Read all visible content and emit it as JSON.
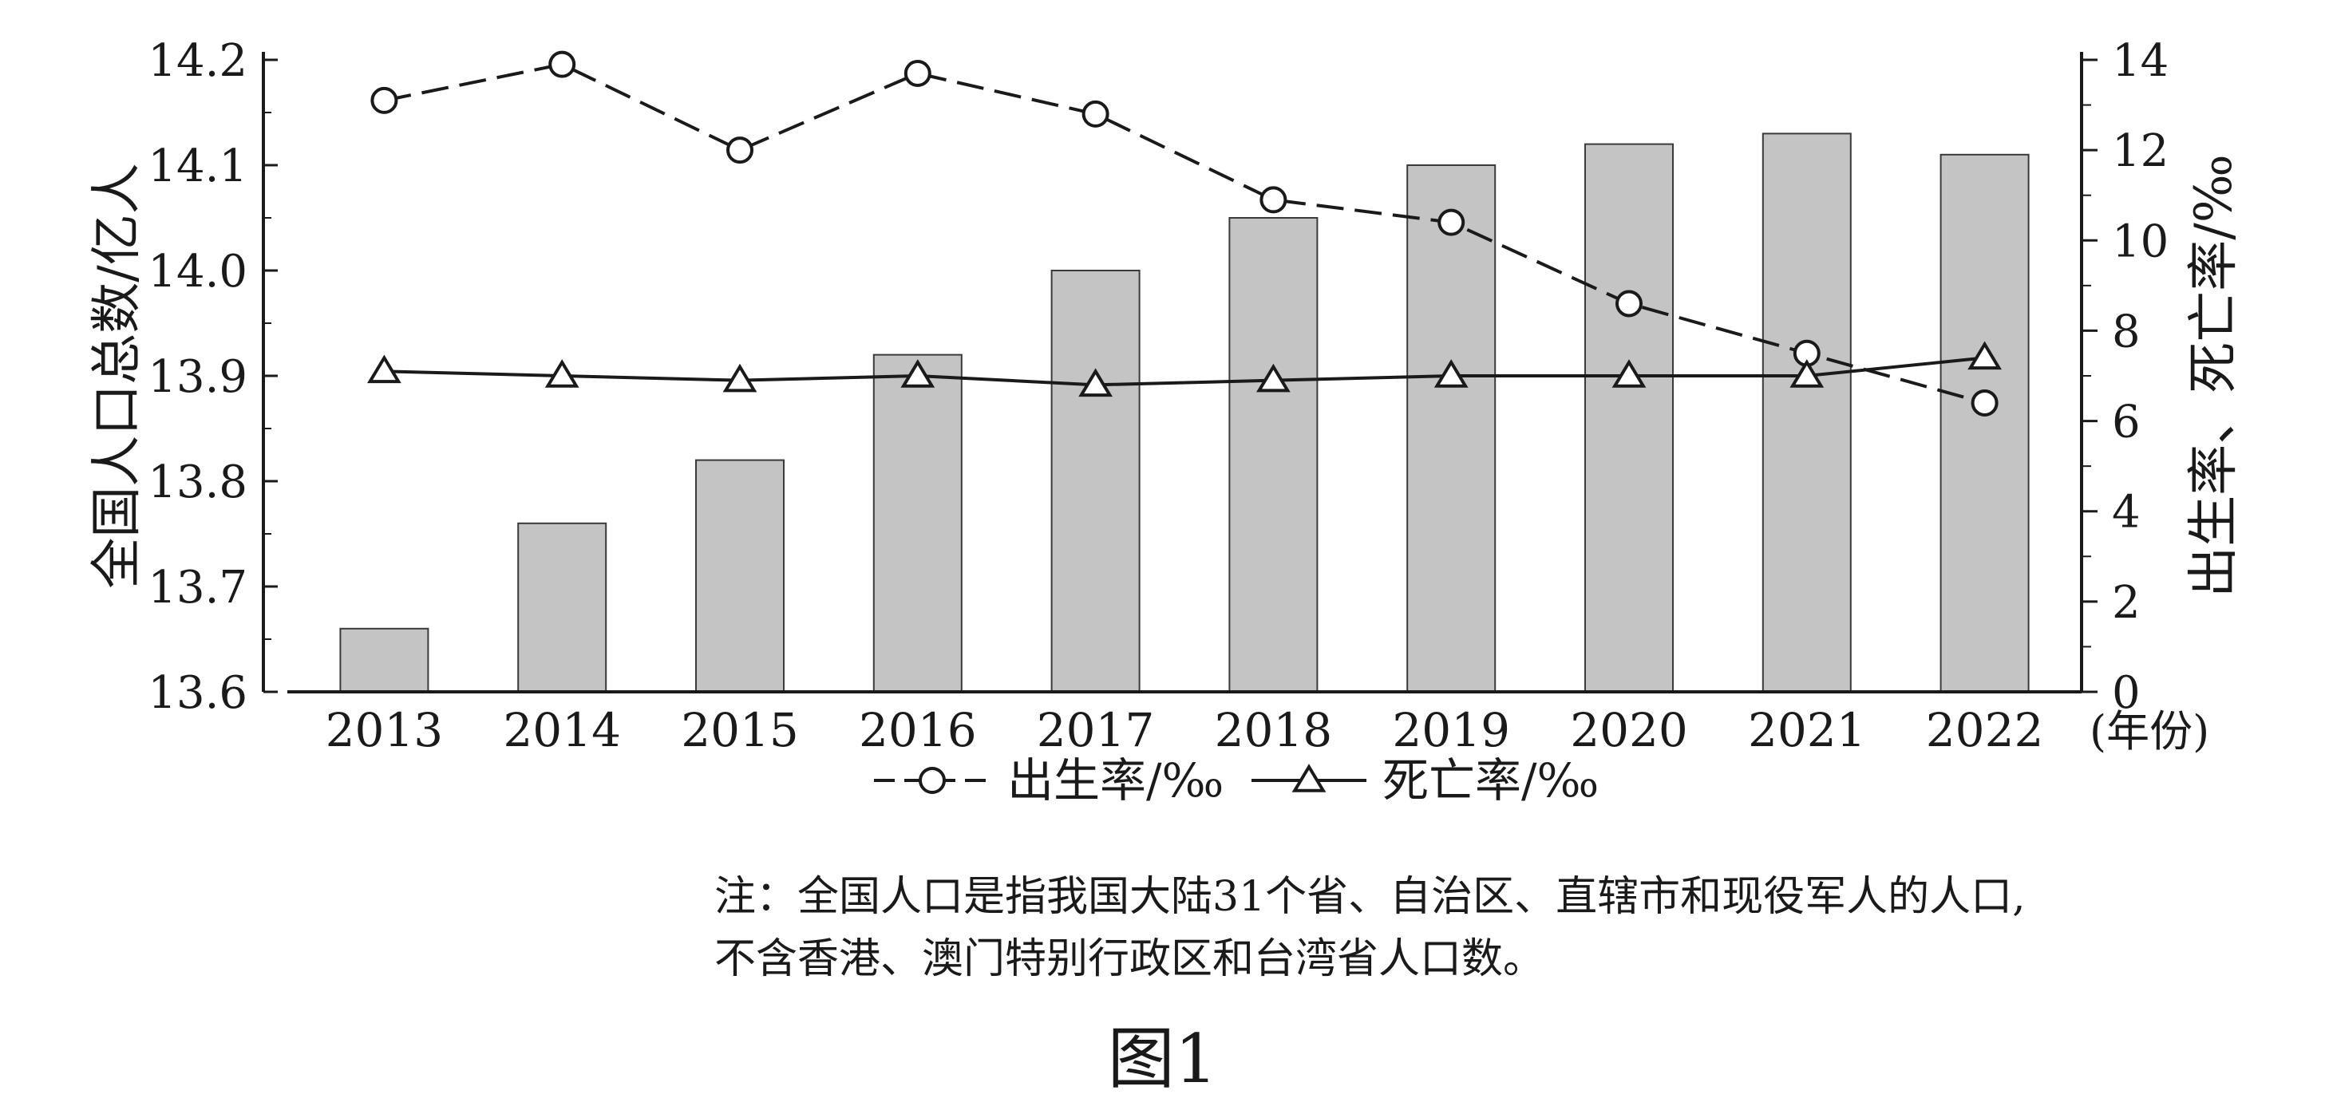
{
  "chart_data": {
    "type": "bar+line",
    "categories": [
      "2013",
      "2014",
      "2015",
      "2016",
      "2017",
      "2018",
      "2019",
      "2020",
      "2021",
      "2022"
    ],
    "x_unit_label": "(年份)",
    "bars": {
      "name": "全国人口总数/亿人",
      "values": [
        13.66,
        13.76,
        13.82,
        13.92,
        14.0,
        14.05,
        14.1,
        14.12,
        14.13,
        14.11
      ],
      "color": "#c4c4c4"
    },
    "series": [
      {
        "name": "出生率/‰",
        "axis": "right",
        "style": "dashed",
        "marker": "circle",
        "values": [
          13.1,
          13.9,
          12.0,
          13.7,
          12.8,
          10.9,
          10.4,
          8.6,
          7.5,
          6.4
        ]
      },
      {
        "name": "死亡率/‰",
        "axis": "right",
        "style": "solid",
        "marker": "triangle",
        "values": [
          7.1,
          7.0,
          6.9,
          7.0,
          6.8,
          6.9,
          7.0,
          7.0,
          7.0,
          7.4
        ]
      }
    ],
    "y_left": {
      "label": "全国人口总数/亿人",
      "range": [
        13.6,
        14.2
      ],
      "ticks": [
        "13.6",
        "13.7",
        "13.8",
        "13.9",
        "14.0",
        "14.1",
        "14.2"
      ]
    },
    "y_right": {
      "label": "出生率、死亡率/‰",
      "range": [
        0,
        14
      ],
      "ticks": [
        "0",
        "2",
        "4",
        "6",
        "8",
        "10",
        "12",
        "14"
      ]
    },
    "legend": {
      "placement": "bottom-center",
      "entries": [
        "出生率/‰",
        "死亡率/‰"
      ]
    },
    "grid": false
  },
  "note": {
    "line1": "注：全国人口是指我国大陆31个省、自治区、直辖市和现役军人的人口,",
    "line2": "不含香港、澳门特别行政区和台湾省人口数。"
  },
  "figure_label": "图1"
}
